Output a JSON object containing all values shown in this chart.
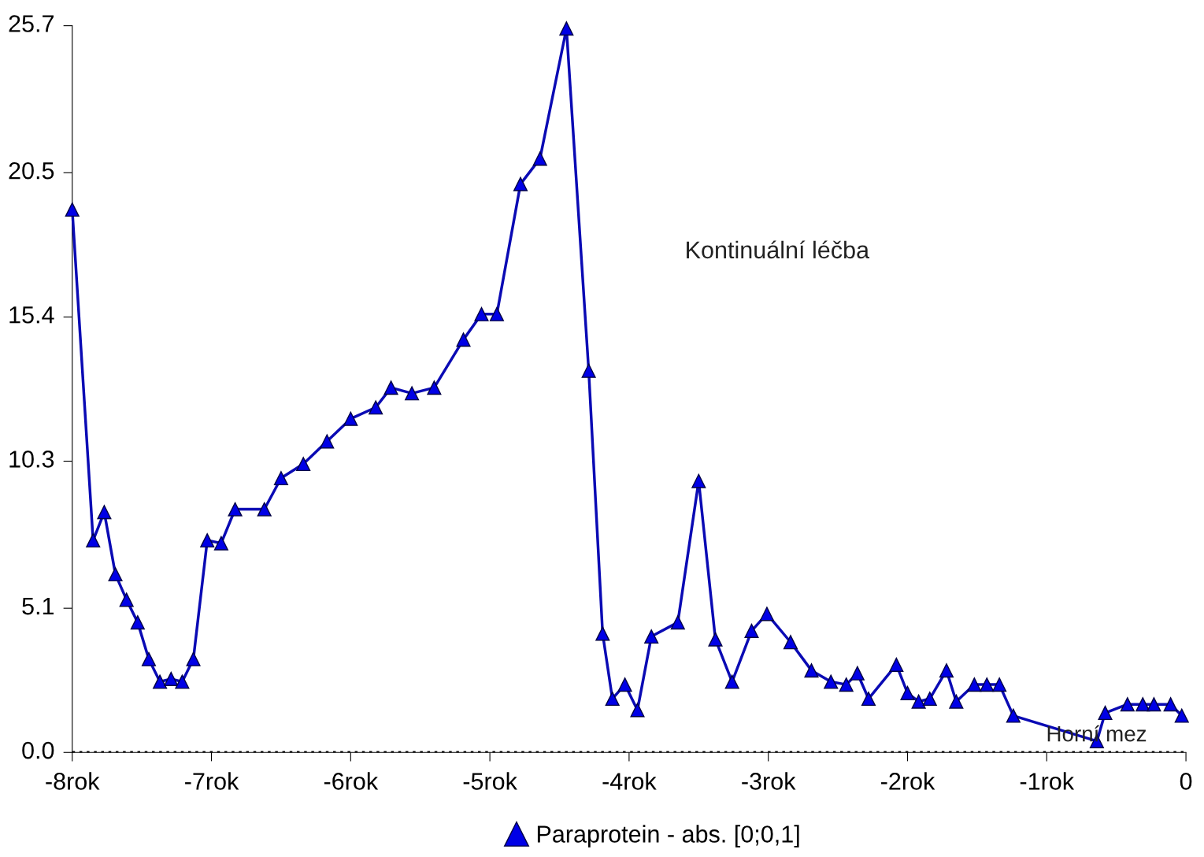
{
  "chart_data": {
    "type": "line",
    "marker": "triangle",
    "line_style": "solid",
    "grid": false,
    "legend": "bottom",
    "annotations": [
      "Kontinuální léčba"
    ],
    "xlim": [
      -8,
      0
    ],
    "ylim": [
      0,
      25.7
    ],
    "xticks": [
      {
        "value": -8,
        "label": "-8rok"
      },
      {
        "value": -7,
        "label": "-7rok"
      },
      {
        "value": -6,
        "label": "-6rok"
      },
      {
        "value": -5,
        "label": "-5rok"
      },
      {
        "value": -4,
        "label": "-4rok"
      },
      {
        "value": -3,
        "label": "-3rok"
      },
      {
        "value": -2,
        "label": "-2rok"
      },
      {
        "value": -1,
        "label": "-1rok"
      },
      {
        "value": 0,
        "label": "0"
      }
    ],
    "yticks": [
      {
        "value": 0,
        "label": "0.0"
      },
      5.1,
      10.3,
      15.4,
      20.5,
      25.7
    ],
    "ref_lines": [
      {
        "axis": "y",
        "value": 0,
        "label": "Horní mez",
        "line_style": "dotted",
        "color": "#000000"
      }
    ],
    "series": [
      {
        "name": "Paraprotein - abs. [0;0,1]",
        "color": "#0a0ab4",
        "x": [
          -8.0,
          -7.85,
          -7.77,
          -7.69,
          -7.61,
          -7.53,
          -7.45,
          -7.37,
          -7.29,
          -7.21,
          -7.13,
          -7.03,
          -6.93,
          -6.83,
          -6.62,
          -6.5,
          -6.34,
          -6.17,
          -6.0,
          -5.82,
          -5.71,
          -5.56,
          -5.4,
          -5.19,
          -5.06,
          -4.95,
          -4.78,
          -4.64,
          -4.45,
          -4.29,
          -4.19,
          -4.12,
          -4.03,
          -3.94,
          -3.84,
          -3.65,
          -3.5,
          -3.38,
          -3.26,
          -3.12,
          -3.01,
          -2.84,
          -2.69,
          -2.55,
          -2.44,
          -2.36,
          -2.28,
          -2.08,
          -2.0,
          -1.92,
          -1.84,
          -1.72,
          -1.65,
          -1.52,
          -1.43,
          -1.34,
          -1.24,
          -0.64,
          -0.58,
          -0.42,
          -0.31,
          -0.23,
          -0.11,
          -0.03
        ],
        "values": [
          19.2,
          7.5,
          8.5,
          6.3,
          5.4,
          4.6,
          3.3,
          2.5,
          2.6,
          2.5,
          3.3,
          7.5,
          7.4,
          8.6,
          8.6,
          9.7,
          10.2,
          11.0,
          11.8,
          12.2,
          12.9,
          12.7,
          12.9,
          14.6,
          15.5,
          15.5,
          20.1,
          21.0,
          25.6,
          13.5,
          4.2,
          1.9,
          2.4,
          1.5,
          4.1,
          4.6,
          9.6,
          4.0,
          2.5,
          4.3,
          4.9,
          3.9,
          2.9,
          2.5,
          2.4,
          2.8,
          1.9,
          3.1,
          2.1,
          1.8,
          1.9,
          2.9,
          1.8,
          2.4,
          2.4,
          2.4,
          1.3,
          0.4,
          1.4,
          1.7,
          1.7,
          1.7,
          1.7,
          1.3
        ]
      }
    ]
  }
}
